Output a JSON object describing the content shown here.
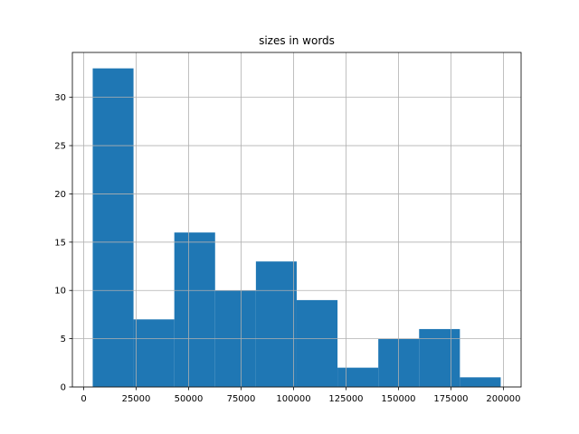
{
  "chart_data": {
    "type": "histogram",
    "title": "sizes in words",
    "bins": [
      4300,
      23740,
      43180,
      62620,
      82060,
      101500,
      120940,
      140380,
      159820,
      179260,
      198700
    ],
    "counts": [
      33,
      7,
      16,
      10,
      13,
      9,
      2,
      5,
      6,
      1
    ],
    "color": "#1f77b4",
    "xlim": [
      -5390,
      208420
    ],
    "xticks": [
      0,
      25000,
      50000,
      75000,
      100000,
      125000,
      150000,
      175000,
      200000
    ],
    "ylim": [
      0,
      34.65
    ],
    "yticks": [
      0,
      5,
      10,
      15,
      20,
      25,
      30
    ],
    "grid": true
  }
}
